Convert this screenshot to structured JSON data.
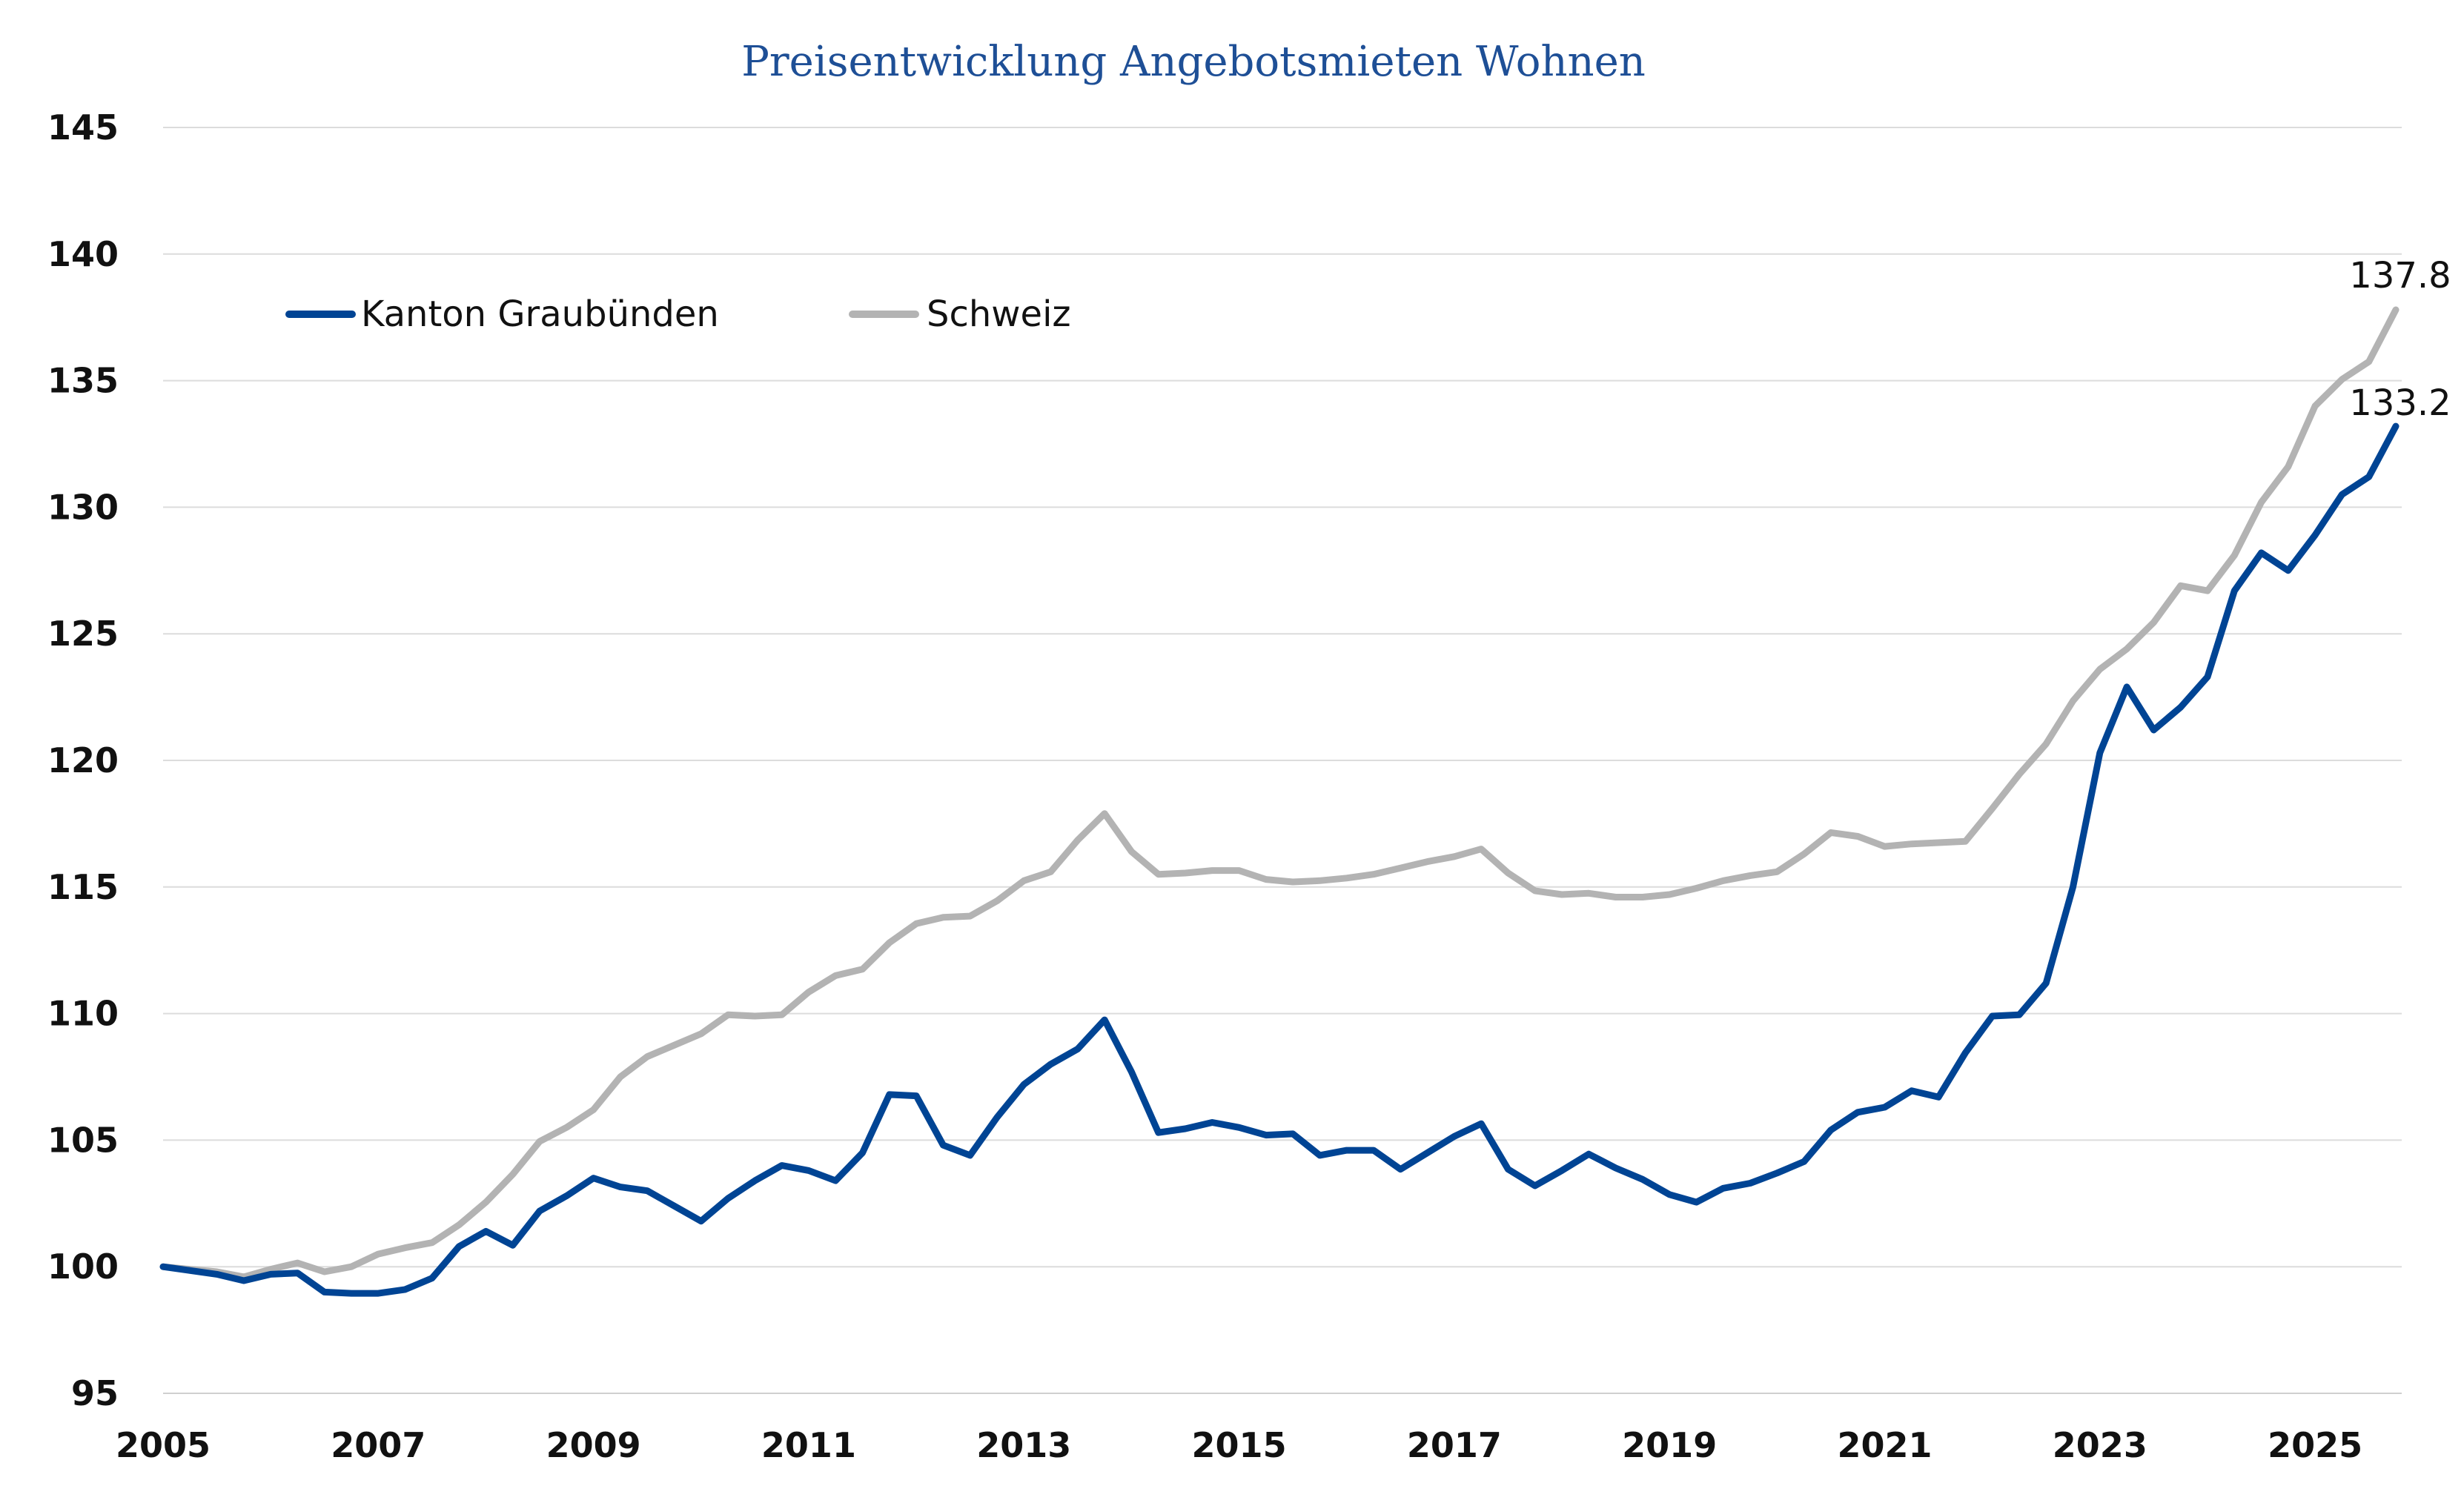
{
  "chart_data": {
    "type": "line",
    "title": "Preisentwicklung Angebotsmieten Wohnen",
    "xlabel": "",
    "ylabel": "",
    "xlim": [
      2005.0,
      2025.75
    ],
    "ylim": [
      95,
      145
    ],
    "y_ticks": [
      95,
      100,
      105,
      110,
      115,
      120,
      125,
      130,
      135,
      140,
      145
    ],
    "x_ticks": [
      2005,
      2007,
      2009,
      2011,
      2013,
      2015,
      2017,
      2019,
      2021,
      2023,
      2025
    ],
    "x_tick_labels": [
      "2005",
      "2007",
      "2009",
      "2011",
      "2013",
      "2015",
      "2017",
      "2019",
      "2021",
      "2023",
      "2025"
    ],
    "grid": "horizontal",
    "legend_position": "top-left",
    "x": [
      2005.0,
      2005.25,
      2005.5,
      2005.75,
      2006.0,
      2006.25,
      2006.5,
      2006.75,
      2007.0,
      2007.25,
      2007.5,
      2007.75,
      2008.0,
      2008.25,
      2008.5,
      2008.75,
      2009.0,
      2009.25,
      2009.5,
      2009.75,
      2010.0,
      2010.25,
      2010.5,
      2010.75,
      2011.0,
      2011.25,
      2011.5,
      2011.75,
      2012.0,
      2012.25,
      2012.5,
      2012.75,
      2013.0,
      2013.25,
      2013.5,
      2013.75,
      2014.0,
      2014.25,
      2014.5,
      2014.75,
      2015.0,
      2015.25,
      2015.5,
      2015.75,
      2016.0,
      2016.25,
      2016.5,
      2016.75,
      2017.0,
      2017.25,
      2017.5,
      2017.75,
      2018.0,
      2018.25,
      2018.5,
      2018.75,
      2019.0,
      2019.25,
      2019.5,
      2019.75,
      2020.0,
      2020.25,
      2020.5,
      2020.75,
      2021.0,
      2021.25,
      2021.5,
      2021.75,
      2022.0,
      2022.25,
      2022.5,
      2022.75,
      2023.0,
      2023.25,
      2023.5,
      2023.75,
      2024.0,
      2024.25,
      2024.5,
      2024.75,
      2025.0,
      2025.25,
      2025.5,
      2025.75
    ],
    "series": [
      {
        "name": "Kanton Graubünden",
        "color": "#004494",
        "values": [
          100.0,
          99.85,
          99.7,
          99.45,
          99.7,
          99.75,
          99.0,
          98.95,
          98.95,
          99.1,
          99.55,
          100.8,
          101.4,
          100.85,
          102.2,
          102.8,
          103.5,
          103.15,
          103.0,
          102.4,
          101.8,
          102.7,
          103.4,
          104.0,
          103.8,
          103.4,
          104.5,
          106.8,
          106.75,
          104.8,
          104.4,
          105.9,
          107.2,
          108.0,
          108.6,
          109.75,
          107.7,
          105.3,
          105.45,
          105.7,
          105.5,
          105.2,
          105.25,
          104.4,
          104.6,
          104.6,
          103.85,
          104.5,
          105.15,
          105.65,
          103.85,
          103.2,
          103.8,
          104.45,
          103.9,
          103.45,
          102.85,
          102.55,
          103.1,
          103.3,
          103.7,
          104.15,
          105.4,
          106.1,
          106.3,
          106.95,
          106.7,
          108.45,
          109.9,
          109.95,
          111.2,
          115.0,
          120.3,
          122.9,
          121.2,
          122.1,
          123.3,
          126.7,
          128.2,
          127.5,
          128.9,
          130.5,
          131.2,
          133.2
        ]
      },
      {
        "name": "Schweiz",
        "color": "#b3b3b3",
        "values": [
          100.0,
          99.9,
          99.8,
          99.6,
          99.9,
          100.15,
          99.8,
          100.0,
          100.5,
          100.75,
          100.95,
          101.65,
          102.55,
          103.65,
          104.95,
          105.5,
          106.2,
          107.5,
          108.3,
          108.75,
          109.2,
          109.95,
          109.9,
          109.95,
          110.85,
          111.5,
          111.75,
          112.8,
          113.55,
          113.8,
          113.85,
          114.45,
          115.25,
          115.6,
          116.85,
          117.9,
          116.4,
          115.5,
          115.55,
          115.65,
          115.65,
          115.3,
          115.2,
          115.25,
          115.35,
          115.5,
          115.75,
          116.0,
          116.2,
          116.5,
          115.55,
          114.85,
          114.7,
          114.75,
          114.6,
          114.6,
          114.7,
          114.95,
          115.25,
          115.45,
          115.6,
          116.3,
          117.15,
          117.0,
          116.6,
          116.7,
          116.75,
          116.8,
          118.1,
          119.45,
          120.65,
          122.35,
          123.6,
          124.4,
          125.45,
          126.9,
          126.7,
          128.1,
          130.2,
          131.6,
          134.0,
          135.05,
          135.75,
          137.8
        ]
      }
    ],
    "end_labels": [
      "137.8",
      "133.2"
    ]
  }
}
